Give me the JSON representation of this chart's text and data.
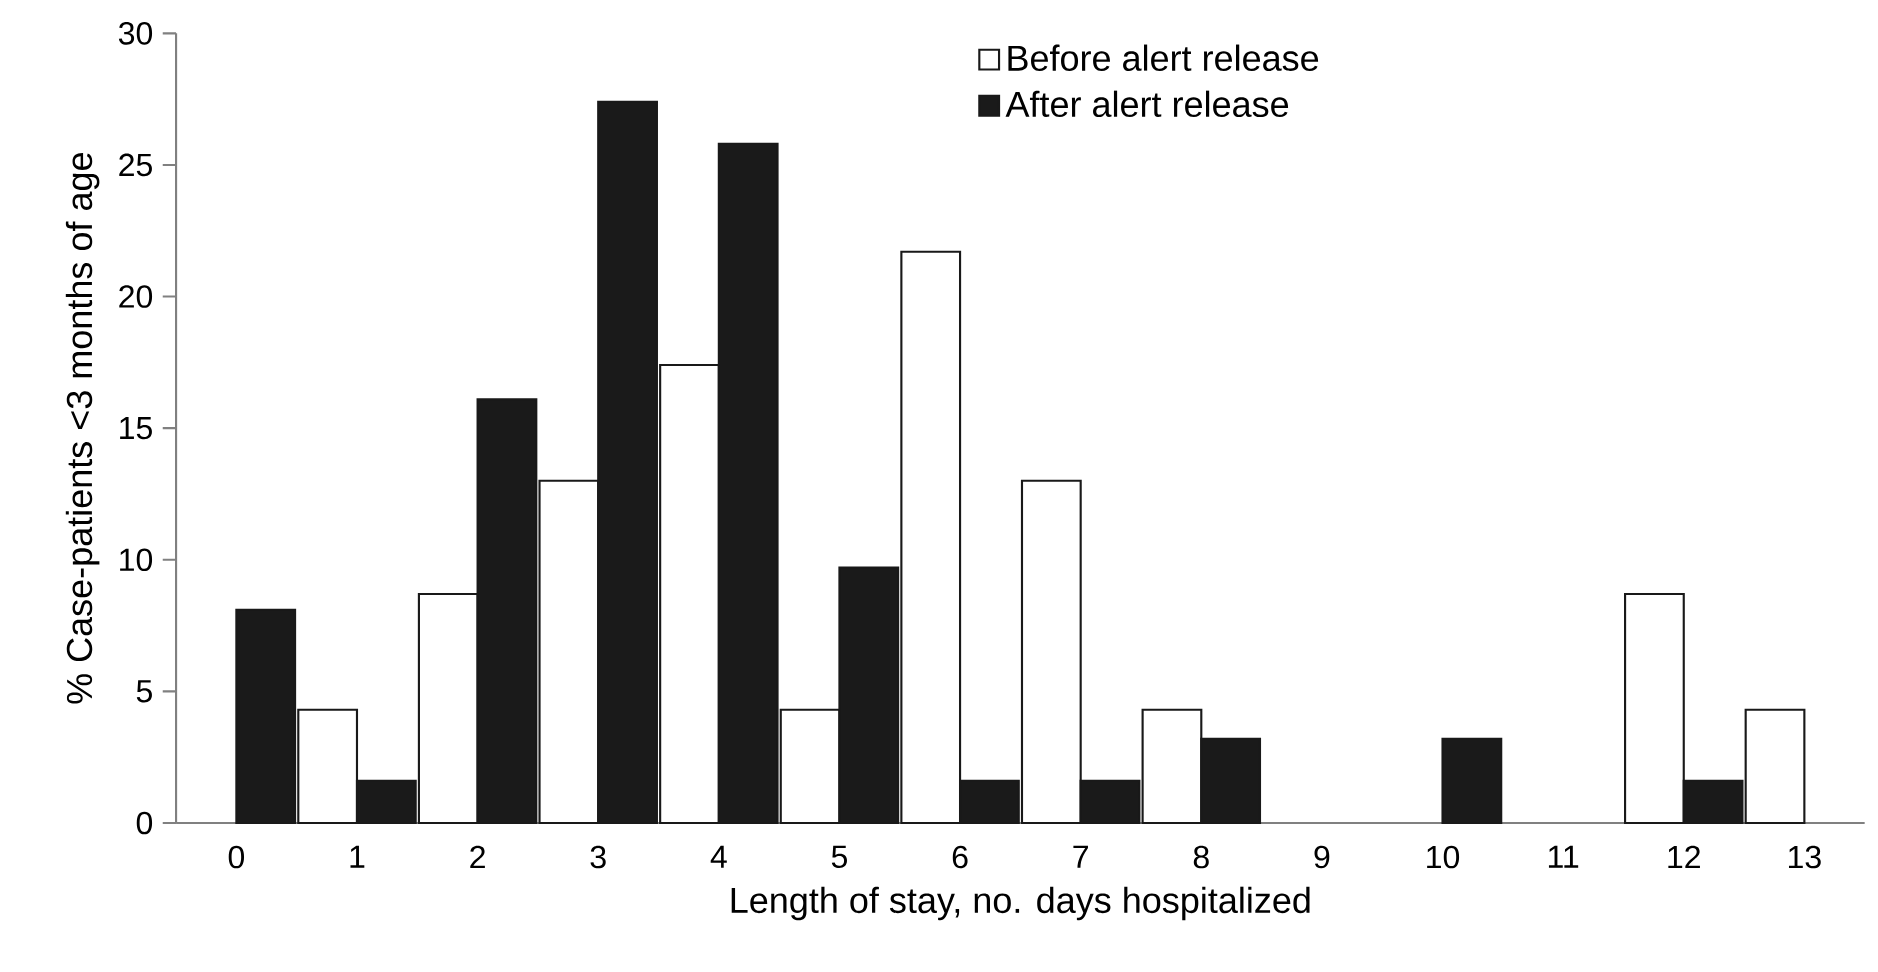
{
  "chart_data": {
    "type": "bar",
    "xlabel": "Length of stay, no. days hospitalized",
    "ylabel": "% Case-patients <3 months of age",
    "categories": [
      "0",
      "1",
      "2",
      "3",
      "4",
      "5",
      "6",
      "7",
      "8",
      "9",
      "10",
      "11",
      "12",
      "13"
    ],
    "series": [
      {
        "name": "Before alert release",
        "color": "#ffffff",
        "values": [
          null,
          4.3,
          8.7,
          13.0,
          17.4,
          4.3,
          21.7,
          13.0,
          4.3,
          null,
          null,
          null,
          8.7,
          4.3
        ]
      },
      {
        "name": "After alert release",
        "color": "#1a1a1a",
        "values": [
          8.1,
          1.6,
          16.1,
          27.4,
          25.8,
          9.7,
          1.6,
          1.6,
          3.2,
          null,
          3.2,
          null,
          1.6,
          null
        ]
      }
    ],
    "ylim": [
      0,
      30
    ],
    "yticks": [
      0,
      5,
      10,
      15,
      20,
      25,
      30
    ],
    "legend": "top right"
  }
}
